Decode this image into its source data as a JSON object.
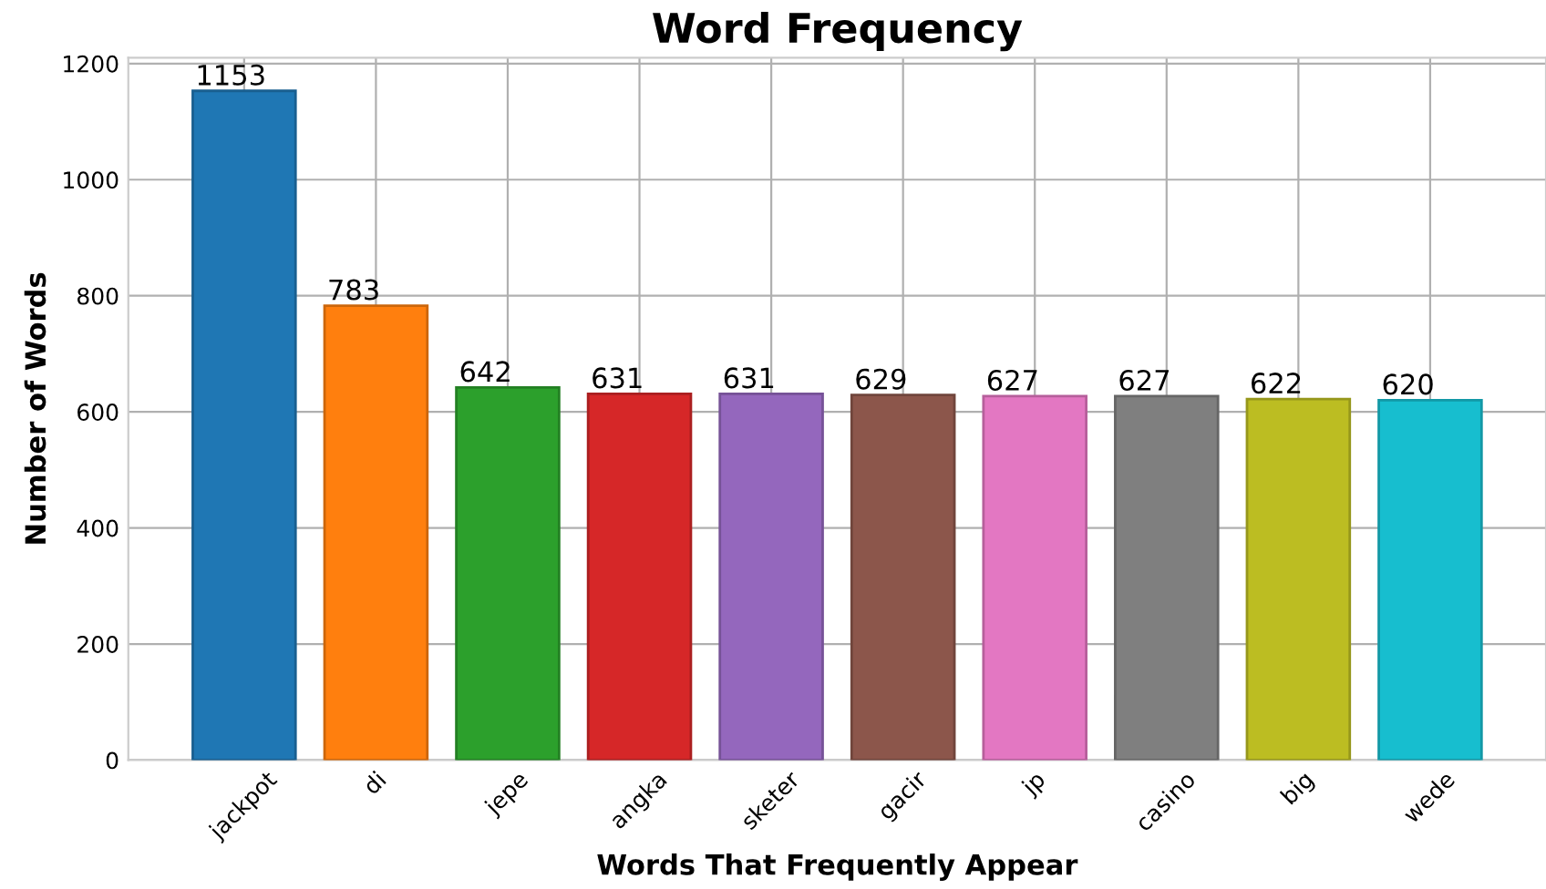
{
  "chart_data": {
    "type": "bar",
    "title": "Word Frequency",
    "xlabel": "Words That Frequently Appear",
    "ylabel": "Number of Words",
    "categories": [
      "jackpot",
      "di",
      "jepe",
      "angka",
      "sketer",
      "gacir",
      "jp",
      "casino",
      "big",
      "wede"
    ],
    "values": [
      1153,
      783,
      642,
      631,
      631,
      629,
      627,
      627,
      622,
      620
    ],
    "colors": [
      "#1f77b4",
      "#ff7f0e",
      "#2ca02c",
      "#d62728",
      "#9467bd",
      "#8c564b",
      "#e377c2",
      "#7f7f7f",
      "#bcbd22",
      "#17becf"
    ],
    "ylim": [
      0,
      1210
    ],
    "yticks": [
      0,
      200,
      400,
      600,
      800,
      1000,
      1200
    ],
    "grid": true,
    "data_labels": true
  }
}
